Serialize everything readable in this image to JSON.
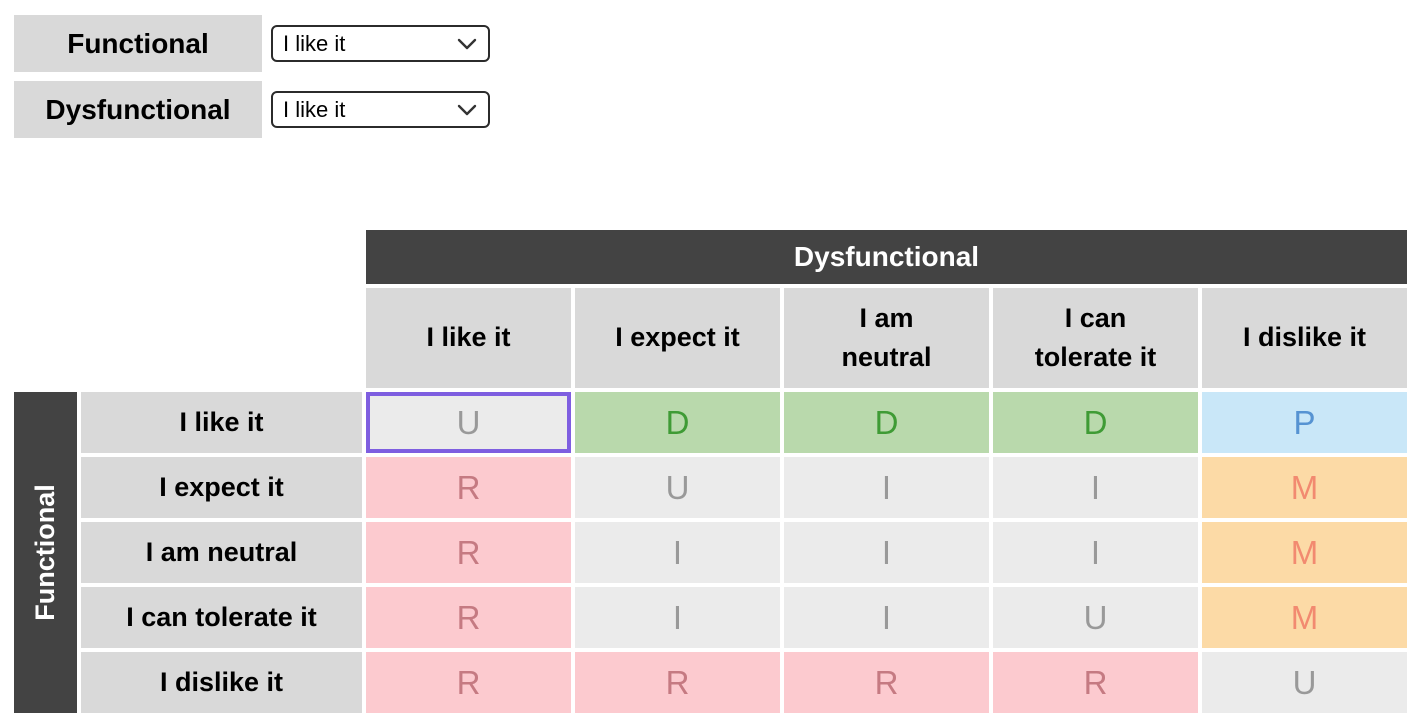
{
  "controls": {
    "rows": [
      {
        "label": "Functional",
        "value": "I like it"
      },
      {
        "label": "Dysfunctional",
        "value": "I like it"
      }
    ]
  },
  "matrix": {
    "column_axis_title": "Dysfunctional",
    "row_axis_title": "Functional",
    "column_headers": [
      "I like it",
      "I expect it",
      "I am\nneutral",
      "I can\ntolerate it",
      "I dislike it"
    ],
    "row_headers": [
      "I like it",
      "I expect it",
      "I am neutral",
      "I can tolerate it",
      "I dislike it"
    ],
    "cells": [
      [
        {
          "letter": "U",
          "category": "gray",
          "selected": true
        },
        {
          "letter": "D",
          "category": "green"
        },
        {
          "letter": "D",
          "category": "green"
        },
        {
          "letter": "D",
          "category": "green"
        },
        {
          "letter": "P",
          "category": "blue"
        }
      ],
      [
        {
          "letter": "R",
          "category": "pink"
        },
        {
          "letter": "U",
          "category": "gray"
        },
        {
          "letter": "I",
          "category": "gray"
        },
        {
          "letter": "I",
          "category": "gray"
        },
        {
          "letter": "M",
          "category": "orange"
        }
      ],
      [
        {
          "letter": "R",
          "category": "pink"
        },
        {
          "letter": "I",
          "category": "gray"
        },
        {
          "letter": "I",
          "category": "gray"
        },
        {
          "letter": "I",
          "category": "gray"
        },
        {
          "letter": "M",
          "category": "orange"
        }
      ],
      [
        {
          "letter": "R",
          "category": "pink"
        },
        {
          "letter": "I",
          "category": "gray"
        },
        {
          "letter": "I",
          "category": "gray"
        },
        {
          "letter": "U",
          "category": "gray"
        },
        {
          "letter": "M",
          "category": "orange"
        }
      ],
      [
        {
          "letter": "R",
          "category": "pink"
        },
        {
          "letter": "R",
          "category": "pink"
        },
        {
          "letter": "R",
          "category": "pink"
        },
        {
          "letter": "R",
          "category": "pink"
        },
        {
          "letter": "U",
          "category": "gray"
        }
      ]
    ]
  },
  "colors": {
    "header_dark": "#434343",
    "header_gray": "#d9d9d9",
    "cell_gray": "#ebebeb",
    "text_gray": "#999999",
    "green_bg": "#b9d9ac",
    "green_text": "#3f9b35",
    "blue_bg": "#c9e7f8",
    "blue_text": "#5693d2",
    "pink_bg": "#fccacf",
    "pink_text": "#c57a82",
    "orange_bg": "#fcdaa6",
    "orange_text": "#f28a70",
    "selected_border": "#7e5ee0"
  }
}
